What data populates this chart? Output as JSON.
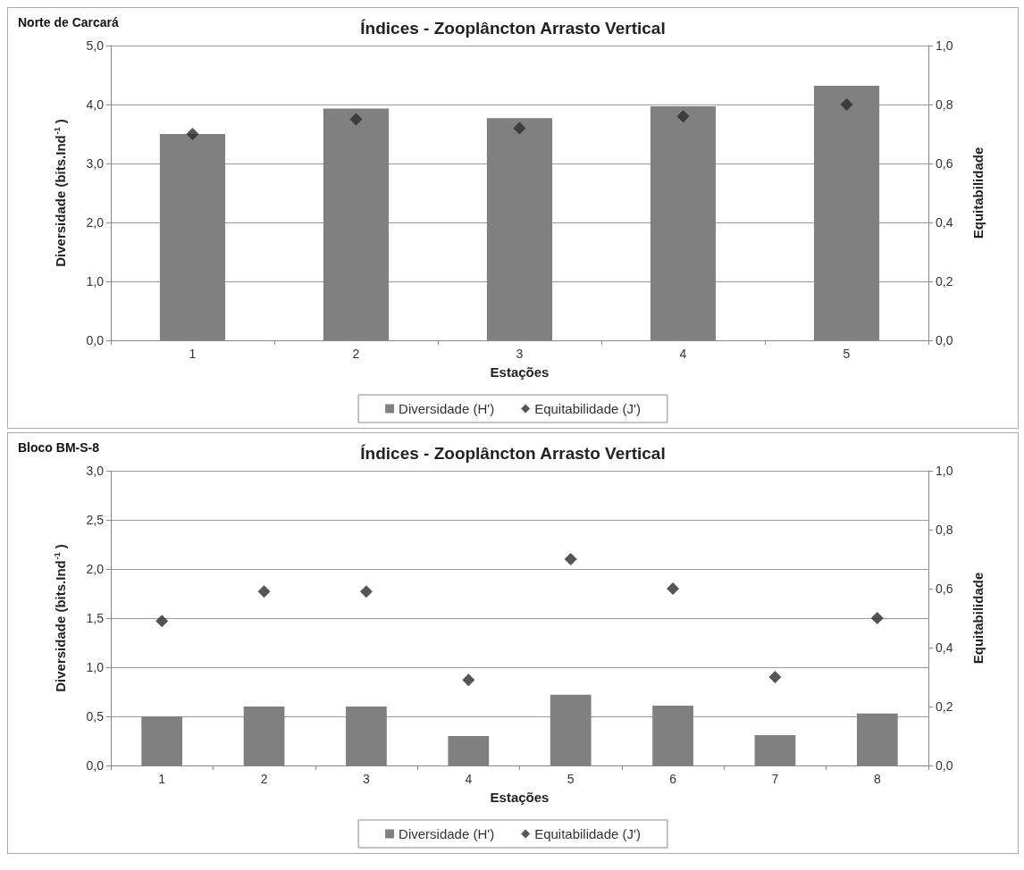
{
  "chart_data": [
    {
      "type": "bar",
      "title": "Índices - Zooplâncton Arrasto Vertical",
      "subtitle": "Norte de Carcará",
      "xlabel": "Estações",
      "ylabel": "Diversidade (bits.Ind$^{-1}$)",
      "y2label": "Equitabilidade",
      "categories": [
        "1",
        "2",
        "3",
        "4",
        "5"
      ],
      "series": [
        {
          "name": "Diversidade (H')",
          "color": "#808080",
          "values": [
            3.5,
            3.93,
            3.77,
            3.97,
            4.32
          ]
        },
        {
          "name": "Equitabilidade (J')",
          "type": "scatter",
          "axis": "y2",
          "color": "#2b2b2b",
          "values": [
            0.7,
            0.75,
            0.72,
            0.76,
            0.8
          ]
        }
      ],
      "ylim": [
        0,
        5
      ],
      "yticks": [
        {
          "value": 0,
          "label": "0,0"
        },
        {
          "value": 1,
          "label": "1,0"
        },
        {
          "value": 2,
          "label": "2,0"
        },
        {
          "value": 3,
          "label": "3,0"
        },
        {
          "value": 4,
          "label": "4,0"
        },
        {
          "value": 5,
          "label": "5,0"
        }
      ],
      "y2lim": [
        0,
        1
      ],
      "y2ticks": [
        {
          "value": 0,
          "label": "0,0"
        },
        {
          "value": 0.2,
          "label": "0,2"
        },
        {
          "value": 0.4,
          "label": "0,4"
        },
        {
          "value": 0.6,
          "label": "0,6"
        },
        {
          "value": 0.8,
          "label": "0,8"
        },
        {
          "value": 1,
          "label": "1,0"
        }
      ],
      "grid": "y",
      "legend": "bottom",
      "marker": "diamond"
    },
    {
      "type": "bar",
      "title": "Índices - Zooplâncton Arrasto Vertical",
      "subtitle": "Bloco BM-S-8",
      "xlabel": "Estações",
      "ylabel": "Diversidade (bits.Ind$^{-1}$)",
      "y2label": "Equitabilidade",
      "categories": [
        "1",
        "2",
        "3",
        "4",
        "5",
        "6",
        "7",
        "8"
      ],
      "series": [
        {
          "name": "Diversidade (H')",
          "color": "#808080",
          "values": [
            0.5,
            0.6,
            0.6,
            0.3,
            0.72,
            0.61,
            0.31,
            0.53
          ]
        },
        {
          "name": "Equitabilidade (J')",
          "type": "scatter",
          "axis": "y2",
          "color": "#2b2b2b",
          "values": [
            0.49,
            0.59,
            0.59,
            0.29,
            0.7,
            0.6,
            0.3,
            0.5
          ]
        }
      ],
      "ylim": [
        0,
        3
      ],
      "yticks": [
        {
          "value": 0,
          "label": "0,0"
        },
        {
          "value": 0.5,
          "label": "0,5"
        },
        {
          "value": 1,
          "label": "1,0"
        },
        {
          "value": 1.5,
          "label": "1,5"
        },
        {
          "value": 2,
          "label": "2,0"
        },
        {
          "value": 2.5,
          "label": "2,5"
        },
        {
          "value": 3,
          "label": "3,0"
        }
      ],
      "y2lim": [
        0,
        1
      ],
      "y2ticks": [
        {
          "value": 0,
          "label": "0,0"
        },
        {
          "value": 0.2,
          "label": "0,2"
        },
        {
          "value": 0.4,
          "label": "0,4"
        },
        {
          "value": 0.6,
          "label": "0,6"
        },
        {
          "value": 0.8,
          "label": "0,8"
        },
        {
          "value": 1,
          "label": "1,0"
        }
      ],
      "grid": "y",
      "legend": "bottom",
      "marker": "diamond"
    }
  ]
}
